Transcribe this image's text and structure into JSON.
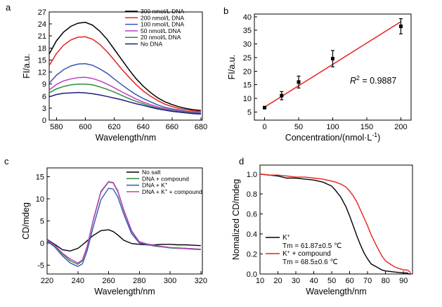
{
  "chart_data": [
    {
      "panel": "a",
      "type": "line",
      "xlabel": "Wavelength/nm",
      "ylabel": "FI/a.u.",
      "xlim": [
        575,
        681
      ],
      "ylim": [
        0,
        27
      ],
      "xticks": [
        580,
        600,
        620,
        640,
        660,
        680
      ],
      "yticks": [
        0,
        3,
        6,
        9,
        12,
        15,
        18,
        21,
        24,
        27
      ],
      "legend_position": "top-right",
      "x": [
        575,
        580,
        585,
        590,
        595,
        600,
        605,
        610,
        615,
        620,
        625,
        630,
        635,
        640,
        645,
        650,
        655,
        660,
        665,
        670,
        675,
        680
      ],
      "series": [
        {
          "name": "300 nmol/L DNA",
          "color": "#000000",
          "values": [
            16.5,
            19.8,
            22.0,
            23.4,
            24.2,
            24.4,
            23.7,
            22.2,
            20.2,
            17.7,
            15.2,
            12.7,
            10.4,
            8.5,
            6.9,
            5.6,
            4.6,
            3.9,
            3.3,
            2.9,
            2.6,
            2.4
          ]
        },
        {
          "name": "200 nmol/L DNA",
          "color": "#e8201c",
          "values": [
            13.6,
            16.6,
            18.7,
            20.0,
            20.7,
            20.8,
            20.2,
            18.9,
            17.1,
            15.0,
            12.8,
            10.8,
            8.9,
            7.3,
            6.0,
            4.9,
            4.0,
            3.4,
            2.9,
            2.6,
            2.3,
            2.2
          ]
        },
        {
          "name": "100 nmol/L DNA",
          "color": "#3a55b4",
          "values": [
            9.2,
            11.2,
            12.6,
            13.5,
            14.0,
            14.1,
            13.7,
            12.8,
            11.7,
            10.3,
            8.9,
            7.6,
            6.4,
            5.4,
            4.6,
            3.8,
            3.2,
            2.8,
            2.5,
            2.2,
            2.0,
            1.9
          ]
        },
        {
          "name": "50 nmol/L DNA",
          "color": "#c040c0",
          "values": [
            7.5,
            8.9,
            9.8,
            10.3,
            10.6,
            10.7,
            10.4,
            9.8,
            9.0,
            8.1,
            7.1,
            6.2,
            5.3,
            4.5,
            3.9,
            3.3,
            2.9,
            2.5,
            2.2,
            2.0,
            1.8,
            1.7
          ]
        },
        {
          "name": "20 nmol/L DNA",
          "color": "#2e8b3e",
          "values": [
            6.8,
            7.8,
            8.4,
            8.8,
            9.0,
            9.0,
            8.8,
            8.3,
            7.7,
            7.0,
            6.2,
            5.4,
            4.7,
            4.1,
            3.5,
            3.0,
            2.6,
            2.3,
            2.1,
            1.9,
            1.7,
            1.6
          ]
        },
        {
          "name": "No DNA",
          "color": "#1c1c80",
          "values": [
            5.8,
            6.4,
            6.7,
            6.8,
            6.9,
            6.8,
            6.6,
            6.3,
            5.9,
            5.5,
            5.1,
            4.6,
            4.1,
            3.7,
            3.2,
            2.8,
            2.5,
            2.2,
            2.0,
            1.8,
            1.6,
            1.5
          ]
        }
      ]
    },
    {
      "panel": "b",
      "type": "scatter",
      "xlabel": "Concentration/(nmol·L",
      "xlabel_sup": "-1",
      "xlabel_end": ")",
      "ylabel": "FI/a.u.",
      "xlim": [
        -15,
        215
      ],
      "ylim": [
        2,
        41
      ],
      "xticks": [
        0,
        50,
        100,
        150,
        200
      ],
      "yticks": [
        5,
        10,
        15,
        20,
        25,
        30,
        35,
        40
      ],
      "x": [
        0,
        25,
        50,
        100,
        200
      ],
      "y": [
        6.6,
        11.0,
        16.0,
        24.6,
        36.5
      ],
      "yerr": [
        0.3,
        1.5,
        2.2,
        3.0,
        2.8
      ],
      "fit_line": {
        "x": [
          0,
          200
        ],
        "y": [
          6.8,
          38.2
        ],
        "color": "#e8201c"
      },
      "annotation": {
        "text": "R",
        "sup": "2",
        "rest": " = 0.9887"
      }
    },
    {
      "panel": "c",
      "type": "line",
      "xlabel": "Wavelength/nm",
      "ylabel": "CD/mdeg",
      "xlim": [
        220,
        321
      ],
      "ylim": [
        -7,
        17
      ],
      "xticks": [
        220,
        240,
        260,
        280,
        300,
        320
      ],
      "yticks": [
        -5,
        0,
        5,
        10,
        15
      ],
      "legend_position": "top-right",
      "x": [
        220,
        225,
        230,
        235,
        240,
        243,
        246,
        250,
        255,
        260,
        263,
        266,
        270,
        275,
        280,
        285,
        290,
        295,
        300,
        305,
        310,
        315,
        320
      ],
      "series": [
        {
          "name": "No salt",
          "color": "#000000",
          "values": [
            0.8,
            -0.3,
            -1.5,
            -1.8,
            -1.2,
            -0.4,
            0.5,
            1.7,
            2.8,
            3.0,
            2.6,
            1.8,
            0.6,
            -0.1,
            -0.3,
            -0.4,
            -0.4,
            -0.3,
            -0.3,
            -0.4,
            -0.4,
            -0.5,
            -0.6
          ]
        },
        {
          "name": "DNA + compound",
          "color": "#2e8b3e",
          "values": [
            0.6,
            -0.6,
            -2.5,
            -4.0,
            -4.8,
            -4.0,
            -1.0,
            5.0,
            11.5,
            13.8,
            13.6,
            11.6,
            7.2,
            2.6,
            0.2,
            -0.3,
            -0.7,
            -0.9,
            -1.1,
            -1.2,
            -1.3,
            -1.4,
            -1.5
          ]
        },
        {
          "name": "DNA + K",
          "name_sup": "+",
          "color": "#3a55b4",
          "values": [
            0.4,
            -0.9,
            -2.9,
            -4.5,
            -5.3,
            -4.7,
            -1.8,
            3.6,
            9.8,
            12.4,
            12.2,
            10.4,
            6.4,
            2.1,
            0.0,
            -0.4,
            -0.6,
            -0.8,
            -1.0,
            -1.1,
            -1.2,
            -1.3,
            -1.4
          ]
        },
        {
          "name": "DNA + K",
          "name_sup": "+",
          "name_rest": " + compound",
          "color": "#c040c0",
          "values": [
            0.7,
            -0.5,
            -2.3,
            -3.6,
            -4.5,
            -3.8,
            -0.8,
            5.2,
            11.7,
            13.9,
            13.7,
            11.8,
            7.4,
            2.8,
            0.3,
            -0.2,
            -0.5,
            -0.8,
            -1.0,
            -1.1,
            -1.2,
            -1.3,
            -1.4
          ]
        }
      ]
    },
    {
      "panel": "d",
      "type": "line",
      "xlabel": "Wavelength/nm",
      "ylabel": "Nomalized CD/mdeg",
      "xlim": [
        10,
        95
      ],
      "ylim": [
        0,
        1.09
      ],
      "xticks": [
        10,
        20,
        30,
        40,
        50,
        60,
        70,
        80,
        90
      ],
      "yticks": [
        0.0,
        0.2,
        0.4,
        0.6,
        0.8,
        1.0
      ],
      "legend_position": "bottom-left",
      "x": [
        10,
        15,
        20,
        25,
        30,
        35,
        40,
        45,
        50,
        52,
        55,
        58,
        60,
        62,
        64,
        66,
        68,
        70,
        72,
        75,
        78,
        80,
        85,
        90,
        92,
        93,
        94
      ],
      "series": [
        {
          "name": "K",
          "name_sup": "+",
          "sub": "Tm = 61.87±0.5 ℃",
          "color": "#000000",
          "values": [
            1.0,
            0.99,
            0.98,
            0.96,
            0.96,
            0.95,
            0.94,
            0.92,
            0.88,
            0.84,
            0.77,
            0.67,
            0.58,
            0.48,
            0.38,
            0.29,
            0.21,
            0.15,
            0.1,
            0.07,
            0.04,
            0.03,
            0.02,
            0.01,
            0.01,
            0.0,
            0.0
          ]
        },
        {
          "name": "K",
          "name_sup": "+",
          "name_rest": " + compound",
          "sub": "Tm = 68.5±0.6 ℃",
          "color": "#e8201c",
          "values": [
            1.0,
            0.99,
            0.99,
            0.98,
            0.97,
            0.97,
            0.96,
            0.95,
            0.93,
            0.92,
            0.9,
            0.87,
            0.83,
            0.78,
            0.72,
            0.64,
            0.56,
            0.48,
            0.39,
            0.28,
            0.18,
            0.13,
            0.07,
            0.04,
            0.04,
            0.03,
            0.01
          ]
        }
      ]
    }
  ]
}
